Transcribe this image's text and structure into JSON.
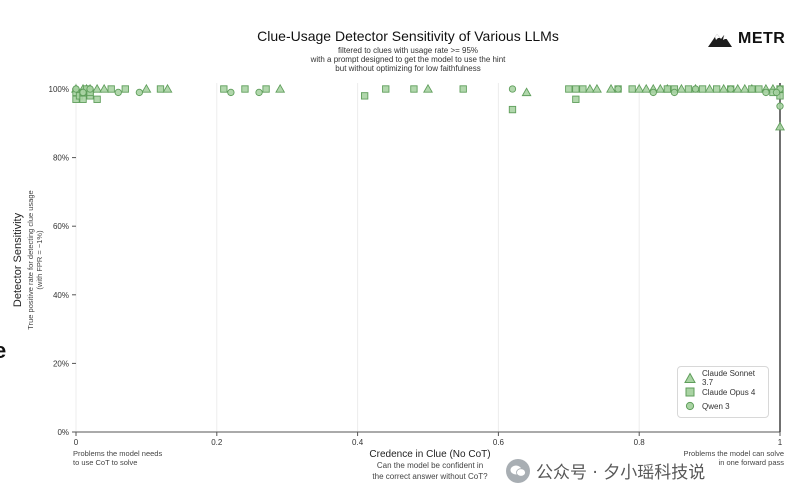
{
  "logo": {
    "text": "METR",
    "icon": "mountain-logo-icon"
  },
  "watermark": {
    "text": "公众号 · 夕小瑶科技说",
    "icon": "wechat-icon"
  },
  "left_cut_glyph": "e",
  "colors": {
    "marker_fill": "#a9d3a3",
    "marker_stroke": "#5f9e5b",
    "grid": "#ececec",
    "axis": "#555555",
    "text": "#222222"
  },
  "chart_data": {
    "type": "scatter",
    "title": "Clue-Usage Detector Sensitivity of Various LLMs",
    "subtitle": [
      "filtered to clues with usage rate >= 95%",
      "with a prompt designed to get the model to use the hint",
      "but without optimizing for low faithfulness"
    ],
    "xlabel": "Credence in Clue (No CoT)",
    "xlabel_sub": [
      "Can the model be confident in",
      "the correct answer without CoT?"
    ],
    "ylabel": "Detector Sensitivity",
    "ylabel_sub": [
      "True positive rate for detecting clue usage",
      "(with FPR = ~1%)"
    ],
    "xlim": [
      0,
      1
    ],
    "ylim": [
      0,
      100
    ],
    "x_ticks": [
      "0",
      "0.2",
      "0.4",
      "0.6",
      "0.8",
      "1"
    ],
    "y_ticks": [
      "0%",
      "20%",
      "40%",
      "60%",
      "80%",
      "100%"
    ],
    "grid": "vertical",
    "x_annotations": {
      "left": [
        "Problems the model needs",
        "to use CoT to solve"
      ],
      "right": [
        "Problems the model can solve",
        "in one forward pass"
      ]
    },
    "legend_position": "bottom-right",
    "series": [
      {
        "name": "Claude Sonnet 3.7",
        "marker": "triangle",
        "points": [
          [
            0.0,
            100
          ],
          [
            0.01,
            100
          ],
          [
            0.015,
            100
          ],
          [
            0.02,
            100
          ],
          [
            0.03,
            100
          ],
          [
            0.04,
            100
          ],
          [
            0.1,
            100
          ],
          [
            0.13,
            100
          ],
          [
            0.29,
            100
          ],
          [
            0.5,
            100
          ],
          [
            0.64,
            99
          ],
          [
            0.73,
            100
          ],
          [
            0.74,
            100
          ],
          [
            0.76,
            100
          ],
          [
            0.8,
            100
          ],
          [
            0.81,
            100
          ],
          [
            0.82,
            100
          ],
          [
            0.83,
            100
          ],
          [
            0.84,
            100
          ],
          [
            0.86,
            100
          ],
          [
            0.88,
            100
          ],
          [
            0.9,
            100
          ],
          [
            0.92,
            100
          ],
          [
            0.94,
            100
          ],
          [
            0.95,
            100
          ],
          [
            0.96,
            100
          ],
          [
            0.98,
            100
          ],
          [
            0.99,
            100
          ],
          [
            1.0,
            89
          ]
        ]
      },
      {
        "name": "Claude Opus 4",
        "marker": "square",
        "points": [
          [
            0.0,
            97
          ],
          [
            0.0,
            99
          ],
          [
            0.005,
            98
          ],
          [
            0.01,
            97
          ],
          [
            0.01,
            99
          ],
          [
            0.015,
            100
          ],
          [
            0.02,
            98
          ],
          [
            0.02,
            99
          ],
          [
            0.03,
            97
          ],
          [
            0.05,
            100
          ],
          [
            0.07,
            100
          ],
          [
            0.12,
            100
          ],
          [
            0.21,
            100
          ],
          [
            0.24,
            100
          ],
          [
            0.27,
            100
          ],
          [
            0.41,
            98
          ],
          [
            0.44,
            100
          ],
          [
            0.48,
            100
          ],
          [
            0.55,
            100
          ],
          [
            0.62,
            94
          ],
          [
            0.7,
            100
          ],
          [
            0.71,
            100
          ],
          [
            0.72,
            100
          ],
          [
            0.71,
            97
          ],
          [
            0.77,
            100
          ],
          [
            0.79,
            100
          ],
          [
            0.84,
            100
          ],
          [
            0.85,
            100
          ],
          [
            0.87,
            100
          ],
          [
            0.89,
            100
          ],
          [
            0.91,
            100
          ],
          [
            0.93,
            100
          ],
          [
            0.96,
            100
          ],
          [
            0.97,
            100
          ],
          [
            0.99,
            99
          ],
          [
            1.0,
            98
          ],
          [
            1.0,
            100
          ]
        ]
      },
      {
        "name": "Qwen 3",
        "marker": "circle",
        "points": [
          [
            0.0,
            100
          ],
          [
            0.01,
            99
          ],
          [
            0.02,
            100
          ],
          [
            0.06,
            99
          ],
          [
            0.09,
            99
          ],
          [
            0.22,
            99
          ],
          [
            0.26,
            99
          ],
          [
            0.62,
            100
          ],
          [
            0.77,
            100
          ],
          [
            0.82,
            99
          ],
          [
            0.85,
            99
          ],
          [
            0.88,
            100
          ],
          [
            0.93,
            100
          ],
          [
            0.98,
            99
          ],
          [
            1.0,
            95
          ],
          [
            1.0,
            100
          ],
          [
            0.995,
            99
          ]
        ]
      }
    ]
  }
}
